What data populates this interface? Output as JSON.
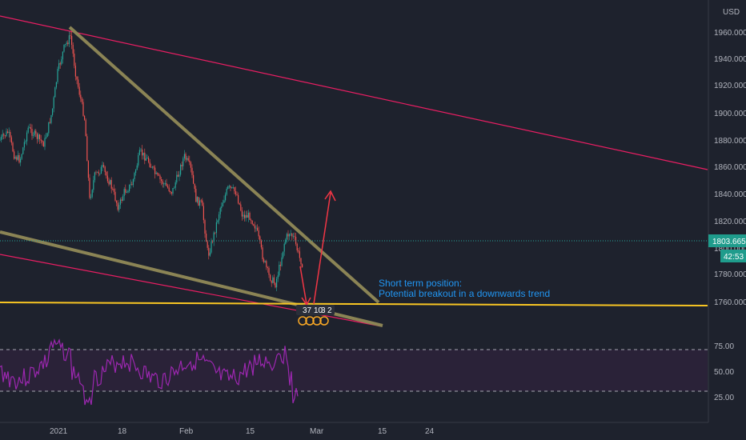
{
  "chart_data": [
    {
      "type": "candlestick",
      "currency": "USD",
      "y_ticks": [
        "1960.000",
        "1940.000",
        "1920.000",
        "1900.000",
        "1880.000",
        "1860.000",
        "1840.000",
        "1820.000",
        "1800.000",
        "1780.000",
        "1760.000"
      ],
      "ylim": [
        1750,
        1975
      ],
      "x_ticks": [
        "2021",
        "18",
        "Feb",
        "15",
        "Mar",
        "15",
        "24"
      ],
      "last_price": "1803.665",
      "countdown": "42:53",
      "annotation": [
        "Short term position:",
        "Potential breakout in a downwards trend"
      ],
      "event_badges": [
        "37",
        "10",
        "3",
        "2"
      ],
      "horizontal_level": 1759,
      "colors": {
        "up": "#26a69a",
        "down": "#ef5350",
        "trendline": "#8b8455",
        "channel": "#e91e63",
        "support": "#f9c623",
        "arrow": "#f23645",
        "annotation": "#2196f3",
        "price_label": "#1f9c8c"
      }
    },
    {
      "type": "line",
      "indicator": "RSI",
      "y_ticks": [
        "75.00",
        "50.00",
        "25.00"
      ],
      "ylim": [
        15,
        85
      ],
      "bands": [
        30,
        70
      ],
      "colors": {
        "line": "#9c27b0",
        "band_fill": "#2a2238"
      }
    }
  ]
}
